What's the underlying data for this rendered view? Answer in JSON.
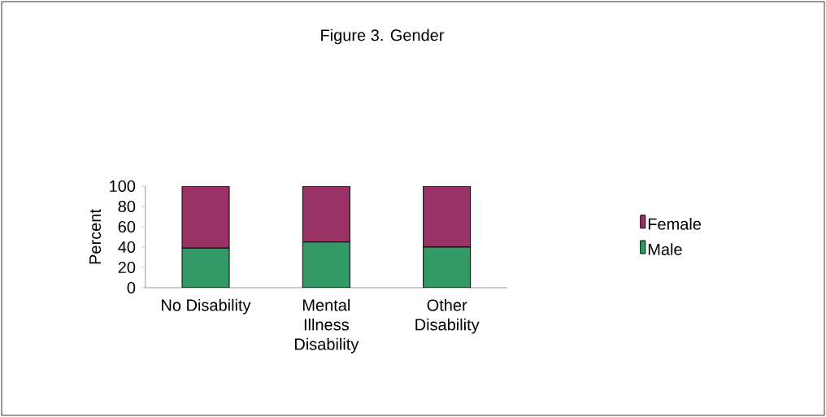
{
  "chart_data": {
    "type": "bar",
    "title": "Figure 3.  Gender",
    "ylabel": "Percent",
    "categories": [
      "No Disability",
      "Mental Illness Disability",
      "Other Disability"
    ],
    "stacked": true,
    "series": [
      {
        "name": "Male",
        "color": "#339966",
        "values": [
          39,
          45,
          40
        ]
      },
      {
        "name": "Female",
        "color": "#993366",
        "values": [
          61,
          55,
          60
        ]
      }
    ],
    "ylim": [
      0,
      100
    ],
    "yticks": [
      0,
      20,
      40,
      60,
      80,
      100
    ],
    "legend": "right"
  }
}
